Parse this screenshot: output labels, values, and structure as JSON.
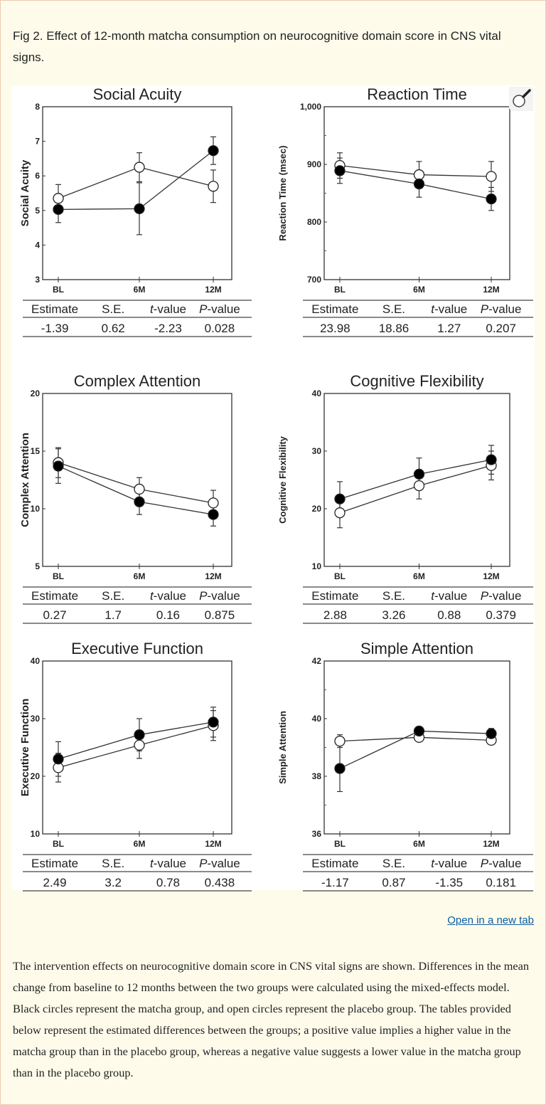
{
  "caption": "Fig 2. Effect of 12-month matcha consumption on neurocognitive domain score in CNS vital signs.",
  "open_link": "Open in a new tab",
  "description": "The intervention effects on neurocognitive domain score in CNS vital signs are shown. Differences in the mean change from baseline to 12 months between the two groups were calculated using the mixed-effects model. Black circles represent the matcha group, and open circles represent the placebo group. The tables provided below represent the estimated differences between the groups; a positive value implies a higher value in the matcha group than in the placebo group, whereas a negative value suggests a lower value in the matcha group than in the placebo group.",
  "icons": {
    "zoom": "magnifier-icon"
  },
  "colors": {
    "matcha": "#000000",
    "placebo": "#ffffff",
    "link": "#0b5fa5"
  },
  "table_headers": [
    "Estimate",
    "S.E.",
    "t-value",
    "P-value"
  ],
  "chart_data": [
    {
      "type": "line",
      "title": "Social Acuity",
      "ylabel": "Social Acuity",
      "categories": [
        "BL",
        "6M",
        "12M"
      ],
      "ylim": [
        3,
        8
      ],
      "yticks": [
        "3",
        "4",
        "5",
        "6",
        "7",
        "8"
      ],
      "ytick_values": [
        3,
        4,
        5,
        6,
        7,
        8
      ],
      "minor": [],
      "series": [
        {
          "marker": "filled",
          "values": [
            5.03,
            5.05,
            6.73
          ],
          "errors": [
            0.38,
            0.75,
            0.4
          ]
        },
        {
          "marker": "open",
          "values": [
            5.35,
            6.25,
            5.7
          ],
          "errors": [
            0.4,
            0.42,
            0.47
          ]
        }
      ],
      "table": [
        "-1.39",
        "0.62",
        "-2.23",
        "0.028"
      ]
    },
    {
      "type": "line",
      "title": "Reaction Time",
      "ylabel": "Reaction Time (msec)",
      "categories": [
        "BL",
        "6M",
        "12M"
      ],
      "ylim": [
        700,
        1000
      ],
      "yticks": [
        "700",
        "800",
        "900",
        "1,000"
      ],
      "ytick_values": [
        700,
        800,
        900,
        1000
      ],
      "minor": [
        750,
        850,
        950
      ],
      "series": [
        {
          "marker": "filled",
          "values": [
            889,
            866,
            840
          ],
          "errors": [
            22,
            23,
            20
          ]
        },
        {
          "marker": "open",
          "values": [
            898,
            882,
            879
          ],
          "errors": [
            22,
            23,
            26
          ]
        }
      ],
      "table": [
        "23.98",
        "18.86",
        "1.27",
        "0.207"
      ]
    },
    {
      "type": "line",
      "title": "Complex Attention",
      "ylabel": "Complex Attention",
      "categories": [
        "BL",
        "6M",
        "12M"
      ],
      "ylim": [
        5,
        20
      ],
      "yticks": [
        "5",
        "10",
        "15",
        "20"
      ],
      "ytick_values": [
        5,
        10,
        15,
        20
      ],
      "minor": [],
      "series": [
        {
          "marker": "filled",
          "values": [
            13.7,
            10.6,
            9.5
          ],
          "errors": [
            1.5,
            1.1,
            1.0
          ]
        },
        {
          "marker": "open",
          "values": [
            14.0,
            11.7,
            10.5
          ],
          "errors": [
            1.3,
            1.0,
            1.1
          ]
        }
      ],
      "table": [
        "0.27",
        "1.7",
        "0.16",
        "0.875"
      ]
    },
    {
      "type": "line",
      "title": "Cognitive Flexibility",
      "ylabel": "Cognitive Flexibility",
      "categories": [
        "BL",
        "6M",
        "12M"
      ],
      "ylim": [
        10,
        40
      ],
      "yticks": [
        "10",
        "20",
        "30",
        "40"
      ],
      "ytick_values": [
        10,
        20,
        30,
        40
      ],
      "minor": [],
      "series": [
        {
          "marker": "filled",
          "values": [
            21.7,
            26.0,
            28.5
          ],
          "errors": [
            3.0,
            2.8,
            2.5
          ]
        },
        {
          "marker": "open",
          "values": [
            19.3,
            24.0,
            27.5
          ],
          "errors": [
            2.6,
            2.3,
            2.5
          ]
        }
      ],
      "table": [
        "2.88",
        "3.26",
        "0.88",
        "0.379"
      ]
    },
    {
      "type": "line",
      "title": "Executive Function",
      "ylabel": "Executive Function",
      "categories": [
        "BL",
        "6M",
        "12M"
      ],
      "ylim": [
        10,
        40
      ],
      "yticks": [
        "10",
        "20",
        "30",
        "40"
      ],
      "ytick_values": [
        10,
        20,
        30,
        40
      ],
      "minor": [],
      "series": [
        {
          "marker": "filled",
          "values": [
            23.0,
            27.2,
            29.4
          ],
          "errors": [
            3.0,
            2.8,
            2.6
          ]
        },
        {
          "marker": "open",
          "values": [
            21.5,
            25.4,
            28.8
          ],
          "errors": [
            2.5,
            2.3,
            2.6
          ]
        }
      ],
      "table": [
        "2.49",
        "3.2",
        "0.78",
        "0.438"
      ]
    },
    {
      "type": "line",
      "title": "Simple Attention",
      "ylabel": "Simple Attention",
      "categories": [
        "BL",
        "6M",
        "12M"
      ],
      "ylim": [
        36,
        42
      ],
      "yticks": [
        "36",
        "38",
        "40",
        "42"
      ],
      "ytick_values": [
        36,
        38,
        40,
        42
      ],
      "minor": [
        37,
        39,
        41
      ],
      "series": [
        {
          "marker": "filled",
          "values": [
            38.27,
            39.57,
            39.48
          ],
          "errors": [
            0.8,
            0.1,
            0.18
          ]
        },
        {
          "marker": "open",
          "values": [
            39.22,
            39.35,
            39.25
          ],
          "errors": [
            0.22,
            0.08,
            0.15
          ]
        }
      ],
      "table": [
        "-1.17",
        "0.87",
        "-1.35",
        "0.181"
      ]
    }
  ]
}
